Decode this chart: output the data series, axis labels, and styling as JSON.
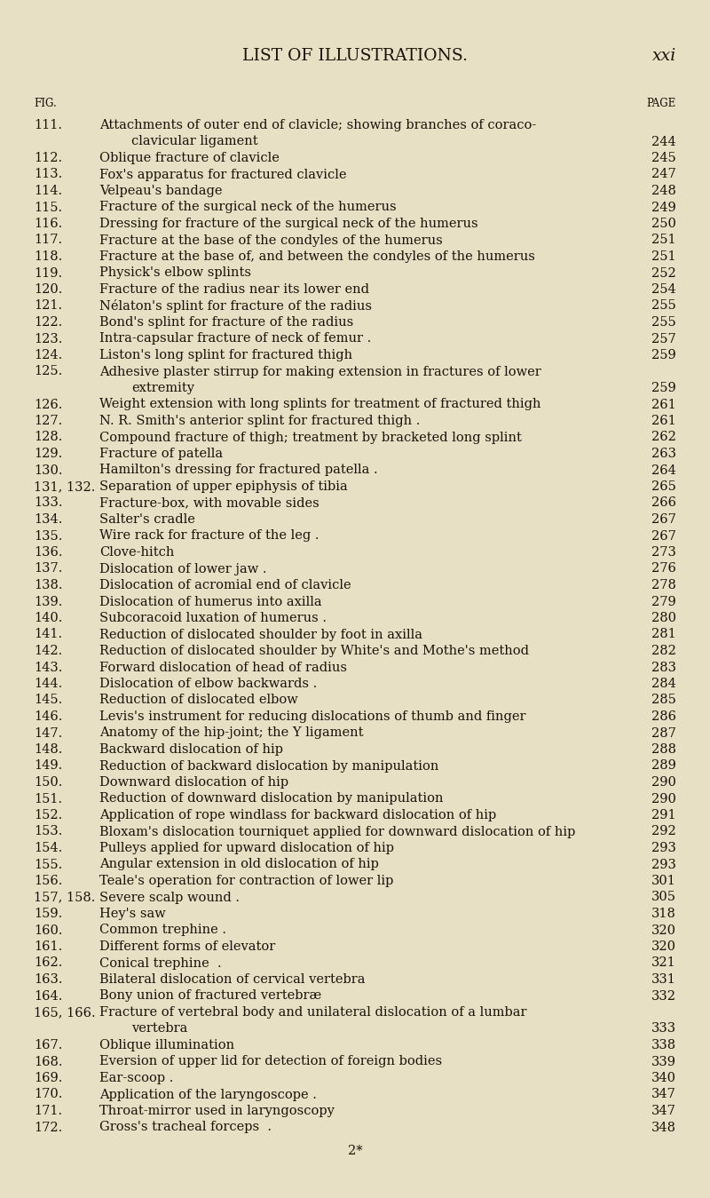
{
  "title": "LIST OF ILLUSTRATIONS.",
  "page_num": "xxi",
  "col_headers": [
    "FIG.",
    "PAGE"
  ],
  "background_color": "#e8e0c4",
  "entries": [
    {
      "fig": "111.",
      "text": "Attachments of outer end of clavicle; showing branches of coraco-",
      "cont": "clavicular ligament",
      "page": "244",
      "wrapped": true
    },
    {
      "fig": "112.",
      "text": "Oblique fracture of clavicle",
      "cont": "",
      "page": "245",
      "wrapped": false
    },
    {
      "fig": "113.",
      "text": "Fox's apparatus for fractured clavicle",
      "cont": "",
      "page": "247",
      "wrapped": false
    },
    {
      "fig": "114.",
      "text": "Velpeau's bandage",
      "cont": "",
      "page": "248",
      "wrapped": false
    },
    {
      "fig": "115.",
      "text": "Fracture of the surgical neck of the humerus",
      "cont": "",
      "page": "249",
      "wrapped": false
    },
    {
      "fig": "116.",
      "text": "Dressing for fracture of the surgical neck of the humerus",
      "cont": "",
      "page": "250",
      "wrapped": false
    },
    {
      "fig": "117.",
      "text": "Fracture at the base of the condyles of the humerus",
      "cont": "",
      "page": "251",
      "wrapped": false
    },
    {
      "fig": "118.",
      "text": "Fracture at the base of, and between the condyles of the humerus",
      "cont": "",
      "page": "251",
      "wrapped": false
    },
    {
      "fig": "119.",
      "text": "Physick's elbow splints",
      "cont": "",
      "page": "252",
      "wrapped": false
    },
    {
      "fig": "120.",
      "text": "Fracture of the radius near its lower end",
      "cont": "",
      "page": "254",
      "wrapped": false
    },
    {
      "fig": "121.",
      "text": "Nélaton's splint for fracture of the radius",
      "cont": "",
      "page": "255",
      "wrapped": false
    },
    {
      "fig": "122.",
      "text": "Bond's splint for fracture of the radius",
      "cont": "",
      "page": "255",
      "wrapped": false
    },
    {
      "fig": "123.",
      "text": "Intra-capsular fracture of neck of femur .",
      "cont": "",
      "page": "257",
      "wrapped": false
    },
    {
      "fig": "124.",
      "text": "Liston's long splint for fractured thigh",
      "cont": "",
      "page": "259",
      "wrapped": false
    },
    {
      "fig": "125.",
      "text": "Adhesive plaster stirrup for making extension in fractures of lower",
      "cont": "extremity",
      "page": "259",
      "wrapped": true
    },
    {
      "fig": "126.",
      "text": "Weight extension with long splints for treatment of fractured thigh",
      "cont": "",
      "page": "261",
      "wrapped": false
    },
    {
      "fig": "127.",
      "text": "N. R. Smith's anterior splint for fractured thigh .",
      "cont": "",
      "page": "261",
      "wrapped": false
    },
    {
      "fig": "128.",
      "text": "Compound fracture of thigh; treatment by bracketed long splint",
      "cont": "",
      "page": "262",
      "wrapped": false
    },
    {
      "fig": "129.",
      "text": "Fracture of patella",
      "cont": "",
      "page": "263",
      "wrapped": false
    },
    {
      "fig": "130.",
      "text": "Hamilton's dressing for fractured patella .",
      "cont": "",
      "page": "264",
      "wrapped": false
    },
    {
      "fig": "131, 132.",
      "text": "Separation of upper epiphysis of tibia",
      "cont": "",
      "page": "265",
      "wrapped": false
    },
    {
      "fig": "133.",
      "text": "Fracture-box, with movable sides",
      "cont": "",
      "page": "266",
      "wrapped": false
    },
    {
      "fig": "134.",
      "text": "Salter's cradle",
      "cont": "",
      "page": "267",
      "wrapped": false
    },
    {
      "fig": "135.",
      "text": "Wire rack for fracture of the leg .",
      "cont": "",
      "page": "267",
      "wrapped": false
    },
    {
      "fig": "136.",
      "text": "Clove-hitch",
      "cont": "",
      "page": "273",
      "wrapped": false
    },
    {
      "fig": "137.",
      "text": "Dislocation of lower jaw .",
      "cont": "",
      "page": "276",
      "wrapped": false
    },
    {
      "fig": "138.",
      "text": "Dislocation of acromial end of clavicle",
      "cont": "",
      "page": "278",
      "wrapped": false
    },
    {
      "fig": "139.",
      "text": "Dislocation of humerus into axilla",
      "cont": "",
      "page": "279",
      "wrapped": false
    },
    {
      "fig": "140.",
      "text": "Subcoracoid luxation of humerus .",
      "cont": "",
      "page": "280",
      "wrapped": false
    },
    {
      "fig": "141.",
      "text": "Reduction of dislocated shoulder by foot in axilla",
      "cont": "",
      "page": "281",
      "wrapped": false
    },
    {
      "fig": "142.",
      "text": "Reduction of dislocated shoulder by White's and Mothe's method",
      "cont": "",
      "page": "282",
      "wrapped": false
    },
    {
      "fig": "143.",
      "text": "Forward dislocation of head of radius",
      "cont": "",
      "page": "283",
      "wrapped": false
    },
    {
      "fig": "144.",
      "text": "Dislocation of elbow backwards .",
      "cont": "",
      "page": "284",
      "wrapped": false
    },
    {
      "fig": "145.",
      "text": "Reduction of dislocated elbow",
      "cont": "",
      "page": "285",
      "wrapped": false
    },
    {
      "fig": "146.",
      "text": "Levis's instrument for reducing dislocations of thumb and finger",
      "cont": "",
      "page": "286",
      "wrapped": false
    },
    {
      "fig": "147.",
      "text": "Anatomy of the hip-joint; the Y ligament",
      "cont": "",
      "page": "287",
      "wrapped": false
    },
    {
      "fig": "148.",
      "text": "Backward dislocation of hip",
      "cont": "",
      "page": "288",
      "wrapped": false
    },
    {
      "fig": "149.",
      "text": "Reduction of backward dislocation by manipulation",
      "cont": "",
      "page": "289",
      "wrapped": false
    },
    {
      "fig": "150.",
      "text": "Downward dislocation of hip",
      "cont": "",
      "page": "290",
      "wrapped": false
    },
    {
      "fig": "151.",
      "text": "Reduction of downward dislocation by manipulation",
      "cont": "",
      "page": "290",
      "wrapped": false
    },
    {
      "fig": "152.",
      "text": "Application of rope windlass for backward dislocation of hip",
      "cont": "",
      "page": "291",
      "wrapped": false
    },
    {
      "fig": "153.",
      "text": "Bloxam's dislocation tourniquet applied for downward dislocation of hip",
      "cont": "",
      "page": "292",
      "wrapped": false
    },
    {
      "fig": "154.",
      "text": "Pulleys applied for upward dislocation of hip",
      "cont": "",
      "page": "293",
      "wrapped": false
    },
    {
      "fig": "155.",
      "text": "Angular extension in old dislocation of hip",
      "cont": "",
      "page": "293",
      "wrapped": false
    },
    {
      "fig": "156.",
      "text": "Teale's operation for contraction of lower lip",
      "cont": "",
      "page": "301",
      "wrapped": false
    },
    {
      "fig": "157, 158.",
      "text": "Severe scalp wound .",
      "cont": "",
      "page": "305",
      "wrapped": false
    },
    {
      "fig": "159.",
      "text": "Hey's saw",
      "cont": "",
      "page": "318",
      "wrapped": false
    },
    {
      "fig": "160.",
      "text": "Common trephine .",
      "cont": "",
      "page": "320",
      "wrapped": false
    },
    {
      "fig": "161.",
      "text": "Different forms of elevator",
      "cont": "",
      "page": "320",
      "wrapped": false
    },
    {
      "fig": "162.",
      "text": "Conical trephine  .",
      "cont": "",
      "page": "321",
      "wrapped": false
    },
    {
      "fig": "163.",
      "text": "Bilateral dislocation of cervical vertebra",
      "cont": "",
      "page": "331",
      "wrapped": false
    },
    {
      "fig": "164.",
      "text": "Bony union of fractured vertebræ",
      "cont": "",
      "page": "332",
      "wrapped": false
    },
    {
      "fig": "165, 166.",
      "text": "Fracture of vertebral body and unilateral dislocation of a lumbar",
      "cont": "vertebra",
      "page": "333",
      "wrapped": true
    },
    {
      "fig": "167.",
      "text": "Oblique illumination",
      "cont": "",
      "page": "338",
      "wrapped": false
    },
    {
      "fig": "168.",
      "text": "Eversion of upper lid for detection of foreign bodies",
      "cont": "",
      "page": "339",
      "wrapped": false
    },
    {
      "fig": "169.",
      "text": "Ear-scoop .",
      "cont": "",
      "page": "340",
      "wrapped": false
    },
    {
      "fig": "170.",
      "text": "Application of the laryngoscope .",
      "cont": "",
      "page": "347",
      "wrapped": false
    },
    {
      "fig": "171.",
      "text": "Throat-mirror used in laryngoscopy",
      "cont": "",
      "page": "347",
      "wrapped": false
    },
    {
      "fig": "172.",
      "text": "Gross's tracheal forceps  .",
      "cont": "",
      "page": "348",
      "wrapped": false
    }
  ],
  "footer": "2*"
}
